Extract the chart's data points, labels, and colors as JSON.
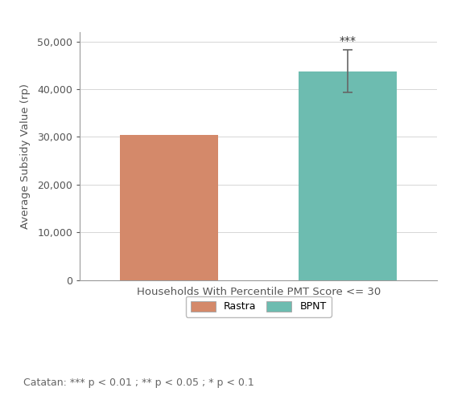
{
  "categories": [
    "Rastra",
    "BPNT"
  ],
  "values": [
    30400,
    43800
  ],
  "bar_colors": [
    "#d4896a",
    "#6dbcb0"
  ],
  "error_bars": [
    0,
    4500
  ],
  "significance_labels": [
    "",
    "***"
  ],
  "xlabel": "Households With Percentile PMT Score <= 30",
  "ylabel": "Average Subsidy Value (rp)",
  "ylim": [
    0,
    52000
  ],
  "yticks": [
    0,
    10000,
    20000,
    30000,
    40000,
    50000
  ],
  "ytick_labels": [
    "0",
    "10,000",
    "20,000",
    "30,000",
    "40,000",
    "50,000"
  ],
  "legend_labels": [
    "Rastra",
    "BPNT"
  ],
  "footnote": "Catatan: *** p < 0.01 ; ** p < 0.05 ; * p < 0.1",
  "background_color": "#ffffff",
  "bar_width": 0.55,
  "bar_edge_color": "none",
  "grid_color": "#d0d0d0",
  "axis_color": "#999999",
  "tick_color": "#555555",
  "label_fontsize": 9.5,
  "tick_fontsize": 9,
  "footnote_fontsize": 9,
  "sig_fontsize": 10,
  "legend_fontsize": 9,
  "error_cap_size": 4,
  "error_color": "#666666",
  "error_linewidth": 1.2
}
